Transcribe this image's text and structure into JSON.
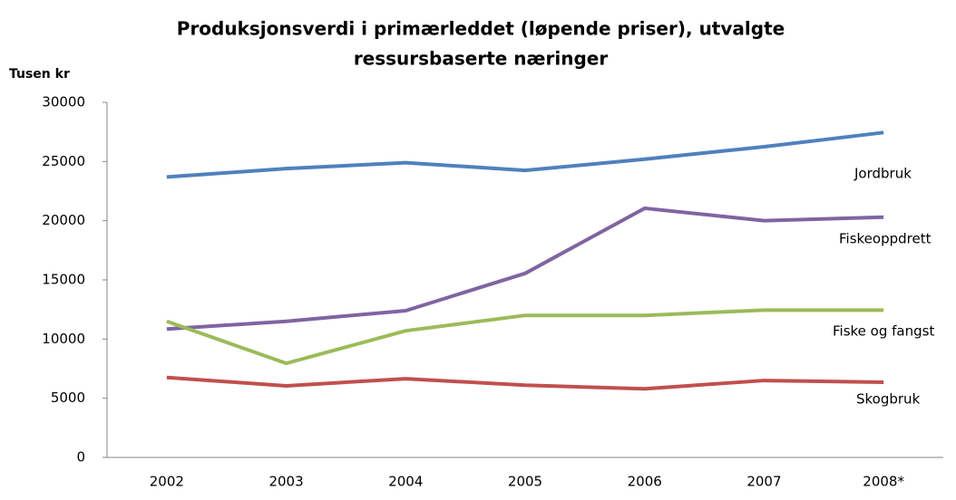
{
  "chart_data": {
    "type": "line",
    "title": [
      "Produksjonsverdi i primærleddet (løpende priser), utvalgte",
      "ressursbaserte næringer"
    ],
    "y_label": "Tusen kr",
    "categories": [
      "2002",
      "2003",
      "2004",
      "2005",
      "2006",
      "2007",
      "2008*"
    ],
    "series": [
      {
        "name": "Jordbruk",
        "color": "#4f81bd",
        "values": [
          23700,
          24400,
          24900,
          24250,
          25200,
          26250,
          27450
        ]
      },
      {
        "name": "Fiskeoppdrett",
        "color": "#8064a2",
        "values": [
          10850,
          11500,
          12400,
          15550,
          21050,
          20000,
          20300
        ]
      },
      {
        "name": "Fiske og fangst",
        "color": "#9bbb59",
        "values": [
          11500,
          7950,
          10700,
          12000,
          12000,
          12450,
          12450
        ]
      },
      {
        "name": "Skogbruk",
        "color": "#c0504d",
        "values": [
          6750,
          6050,
          6650,
          6100,
          5800,
          6500,
          6350
        ]
      }
    ],
    "ylim": [
      0,
      30000
    ],
    "yticks": [
      0,
      5000,
      10000,
      15000,
      20000,
      25000,
      30000
    ],
    "grid": false
  }
}
